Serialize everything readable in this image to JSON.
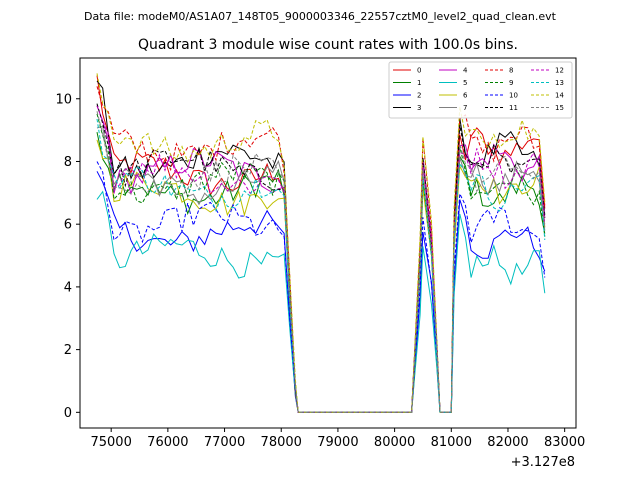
{
  "header": {
    "data_file": "Data file: modeM0/AS1A07_148T05_9000003346_22557cztM0_level2_quad_clean.evt"
  },
  "chart_data": {
    "type": "line",
    "title": "Quadrant 3 module wise count rates with 100.0s bins.",
    "xlabel": "",
    "ylabel": "",
    "x_offset_label": "+3.127e8",
    "xlim": [
      74450,
      83200
    ],
    "ylim": [
      -0.5,
      11.3
    ],
    "x_ticks": [
      75000,
      76000,
      77000,
      78000,
      79000,
      80000,
      81000,
      82000,
      83000
    ],
    "x_tick_labels": [
      "75000",
      "76000",
      "77000",
      "78000",
      "79000",
      "80000",
      "81000",
      "82000",
      "83000"
    ],
    "y_ticks": [
      0,
      2,
      4,
      6,
      8,
      10
    ],
    "y_tick_labels": [
      "0",
      "2",
      "4",
      "6",
      "8",
      "10"
    ],
    "bin_seconds": 100,
    "segments": [
      {
        "start": 74750,
        "end": 78050,
        "kind": "active"
      },
      {
        "start": 78150,
        "end": 78250,
        "kind": "fall",
        "frac": [
          0.5,
          0.1
        ]
      },
      {
        "start": 78300,
        "end": 80300,
        "kind": "zero"
      },
      {
        "start": 80350,
        "end": 80450,
        "kind": "rise",
        "frac": [
          0.2,
          0.65
        ]
      },
      {
        "start": 80500,
        "end": 80550,
        "kind": "peak",
        "frac": [
          0.9,
          0.95
        ]
      },
      {
        "start": 80650,
        "end": 80750,
        "kind": "fall",
        "frac": [
          0.7,
          0.25
        ]
      },
      {
        "start": 80800,
        "end": 81000,
        "kind": "zero"
      },
      {
        "start": 81050,
        "end": 81100,
        "kind": "rise",
        "frac": [
          0.75,
          0.95
        ]
      },
      {
        "start": 81150,
        "end": 82650,
        "kind": "active"
      }
    ],
    "series": [
      {
        "name": "0",
        "color": "#e00000",
        "dash": "solid",
        "start_value": 10.6,
        "level": 7.6,
        "end_value": 8.5,
        "last_value": 6.5
      },
      {
        "name": "1",
        "color": "#008000",
        "dash": "solid",
        "start_value": 9.0,
        "level": 7.1,
        "end_value": 7.0,
        "last_value": 5.7
      },
      {
        "name": "2",
        "color": "#0000ff",
        "dash": "solid",
        "start_value": 7.5,
        "level": 5.7,
        "end_value": 5.5,
        "last_value": 4.5
      },
      {
        "name": "3",
        "color": "#000000",
        "dash": "solid",
        "start_value": 10.7,
        "level": 8.0,
        "end_value": 8.3,
        "last_value": 6.3
      },
      {
        "name": "4",
        "color": "#c000c0",
        "dash": "solid",
        "start_value": 9.7,
        "level": 7.7,
        "end_value": 8.0,
        "last_value": 6.2
      },
      {
        "name": "5",
        "color": "#00bfbf",
        "dash": "solid",
        "start_value": 7.2,
        "level": 5.0,
        "end_value": 4.7,
        "last_value": 3.8
      },
      {
        "name": "6",
        "color": "#bfbf00",
        "dash": "solid",
        "start_value": 8.8,
        "level": 7.0,
        "end_value": 7.2,
        "last_value": 5.9
      },
      {
        "name": "7",
        "color": "#808080",
        "dash": "solid",
        "start_value": 9.2,
        "level": 7.3,
        "end_value": 7.5,
        "last_value": 5.8
      },
      {
        "name": "8",
        "color": "#e00000",
        "dash": "dashed",
        "start_value": 10.2,
        "level": 8.5,
        "end_value": 8.6,
        "last_value": 6.6
      },
      {
        "name": "9",
        "color": "#008000",
        "dash": "dashed",
        "start_value": 9.4,
        "level": 7.3,
        "end_value": 7.2,
        "last_value": 5.6
      },
      {
        "name": "10",
        "color": "#0000ff",
        "dash": "dashed",
        "start_value": 8.0,
        "level": 6.0,
        "end_value": 6.0,
        "last_value": 4.3
      },
      {
        "name": "11",
        "color": "#000000",
        "dash": "dashed",
        "start_value": 9.9,
        "level": 7.8,
        "end_value": 7.9,
        "last_value": 6.2
      },
      {
        "name": "12",
        "color": "#c000c0",
        "dash": "dashed",
        "start_value": 9.6,
        "level": 7.6,
        "end_value": 7.8,
        "last_value": 6.0
      },
      {
        "name": "13",
        "color": "#00bfbf",
        "dash": "dashed",
        "start_value": 9.0,
        "level": 7.2,
        "end_value": 7.1,
        "last_value": 5.5
      },
      {
        "name": "14",
        "color": "#bfbf00",
        "dash": "dashed",
        "start_value": 10.4,
        "level": 8.6,
        "end_value": 8.8,
        "last_value": 6.7
      },
      {
        "name": "15",
        "color": "#808080",
        "dash": "dashed",
        "start_value": 9.5,
        "level": 7.5,
        "end_value": 7.6,
        "last_value": 5.9
      }
    ],
    "legend": {
      "position": "top-right",
      "columns": 4
    }
  }
}
